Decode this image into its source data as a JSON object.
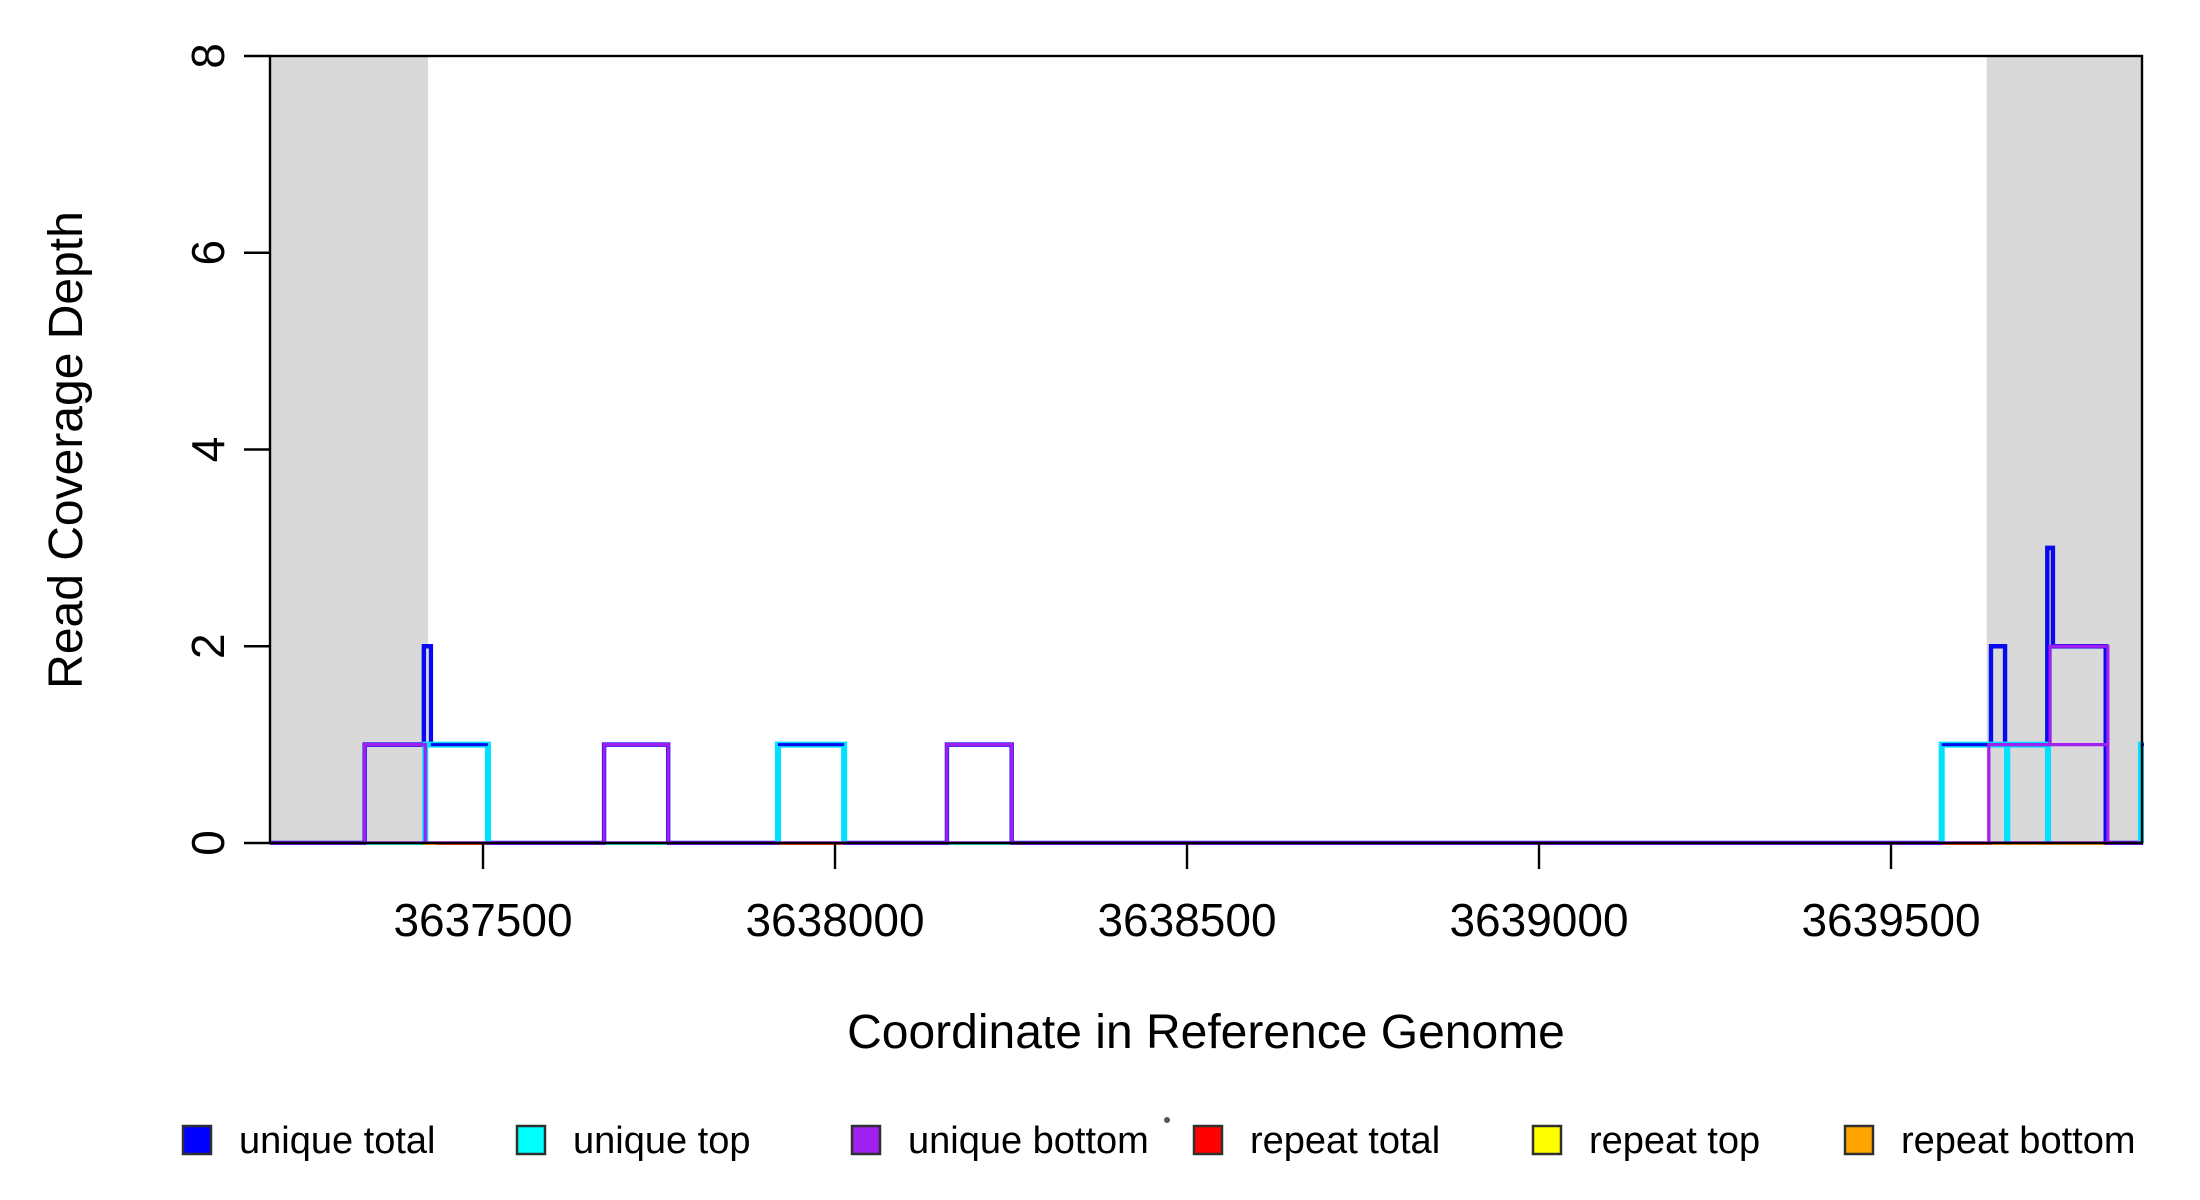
{
  "chart_data": {
    "type": "line",
    "title": "",
    "xlabel": "Coordinate in Reference Genome",
    "ylabel": "Read Coverage Depth",
    "xlim": [
      3637197,
      3639857
    ],
    "ylim": [
      0,
      8
    ],
    "x_ticks": [
      "3637500",
      "3638000",
      "3638500",
      "3639000",
      "3639500"
    ],
    "x_tick_values": [
      3637500,
      3638000,
      3638500,
      3639000,
      3639500
    ],
    "y_ticks": [
      "0",
      "2",
      "4",
      "6",
      "8"
    ],
    "y_tick_values": [
      0,
      2,
      4,
      6,
      8
    ],
    "grid": false,
    "legend_position": "bottom",
    "repeat_regions": [
      {
        "start": 3637197,
        "end": 3637422
      },
      {
        "start": 3639636,
        "end": 3639857
      }
    ],
    "repeat_region_fill": "#D9D9D9",
    "series": [
      {
        "name": "unique total",
        "color": "#0A0AF0",
        "style": "step",
        "segments": [
          [
            3637332,
            3637416,
            1
          ],
          [
            3637416,
            3637426,
            2
          ],
          [
            3637426,
            3637507,
            1
          ],
          [
            3637672,
            3637763,
            1
          ],
          [
            3637919,
            3638013,
            1
          ],
          [
            3638159,
            3638251,
            1
          ],
          [
            3639572,
            3639642,
            1
          ],
          [
            3639642,
            3639662,
            2
          ],
          [
            3639662,
            3639722,
            1
          ],
          [
            3639722,
            3639730,
            3
          ],
          [
            3639730,
            3639805,
            2
          ],
          [
            3639855,
            3639860,
            1
          ]
        ]
      },
      {
        "name": "unique top",
        "color": "#00E0FF",
        "style": "boxes",
        "boxes": [
          [
            3637418,
            3637507,
            0,
            1
          ],
          [
            3637919,
            3638013,
            0,
            1
          ],
          [
            3639572,
            3639665,
            0,
            1
          ],
          [
            3639665,
            3639723,
            0,
            1
          ],
          [
            3639855,
            3639860,
            0,
            1
          ]
        ]
      },
      {
        "name": "unique bottom",
        "color": "#A020F0",
        "style": "boxes-with-baseline",
        "boxes": [
          [
            3637332,
            3637418,
            0,
            1
          ],
          [
            3637672,
            3637763,
            0,
            1
          ],
          [
            3638159,
            3638251,
            0,
            1
          ],
          [
            3639639,
            3639808,
            0,
            1
          ],
          [
            3639726,
            3639808,
            1,
            2
          ]
        ]
      },
      {
        "name": "repeat total",
        "color": "#FF0000",
        "style": "flat-baseline",
        "value": 0
      },
      {
        "name": "repeat top",
        "color": "#FFFF00",
        "style": "flat-baseline",
        "value": 0
      },
      {
        "name": "repeat bottom",
        "color": "#FFA500",
        "style": "flat-baseline",
        "value": 0
      }
    ],
    "baseline_overlays": [
      {
        "name": "red-sliver",
        "color": "#FF3B3B",
        "width": 2.5,
        "offset": 2,
        "ranges": [
          [
            3637420,
            3637505
          ],
          [
            3637921,
            3638011
          ],
          [
            3639574,
            3639640
          ]
        ]
      },
      {
        "name": "teal-sliver",
        "color": "#18DCB4",
        "width": 2.5,
        "offset": 1,
        "ranges": [
          [
            3637334,
            3637416
          ],
          [
            3637674,
            3637761
          ],
          [
            3638161,
            3638249
          ]
        ]
      },
      {
        "name": "orange-run",
        "color": "#FF9500",
        "width": 4,
        "offset": 1,
        "ranges": [
          [
            3637416,
            3637434
          ],
          [
            3639644,
            3639803
          ]
        ]
      }
    ]
  },
  "legend": {
    "items": [
      {
        "label": "unique total",
        "color": "#0000FF"
      },
      {
        "label": "unique top",
        "color": "#00FFFF"
      },
      {
        "label": "unique bottom",
        "color": "#A020F0"
      },
      {
        "label": "repeat total",
        "color": "#FF0000"
      },
      {
        "label": "repeat top",
        "color": "#FFFF00"
      },
      {
        "label": "repeat bottom",
        "color": "#FFA500"
      }
    ],
    "artifact_dot": {
      "present": true,
      "color": "#555555"
    }
  }
}
